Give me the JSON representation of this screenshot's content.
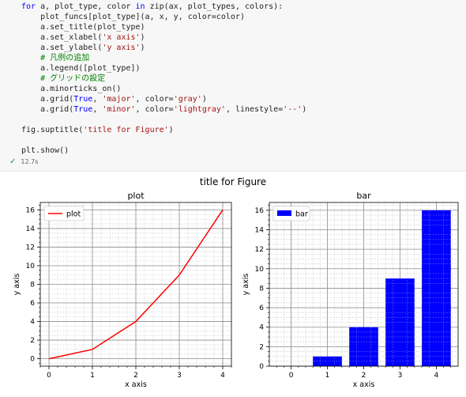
{
  "code_cell": {
    "lines": [
      [
        {
          "t": "for ",
          "c": "kw"
        },
        {
          "t": "a, plot_type, color ",
          "c": ""
        },
        {
          "t": "in ",
          "c": "kw"
        },
        {
          "t": "zip(ax, plot_types, colors):",
          "c": ""
        }
      ],
      [
        {
          "t": "    plot_funcs[plot_type](a, x, y, color=color)",
          "c": ""
        }
      ],
      [
        {
          "t": "    a.set_title(plot_type)",
          "c": ""
        }
      ],
      [
        {
          "t": "    a.set_xlabel(",
          "c": ""
        },
        {
          "t": "'x axis'",
          "c": "str"
        },
        {
          "t": ")",
          "c": ""
        }
      ],
      [
        {
          "t": "    a.set_ylabel(",
          "c": ""
        },
        {
          "t": "'y axis'",
          "c": "str"
        },
        {
          "t": ")",
          "c": ""
        }
      ],
      [
        {
          "t": "    # 凡例の追加",
          "c": "com"
        }
      ],
      [
        {
          "t": "    a.legend([plot_type])",
          "c": ""
        }
      ],
      [
        {
          "t": "    # グリッドの設定",
          "c": "com"
        }
      ],
      [
        {
          "t": "    a.minorticks_on()",
          "c": ""
        }
      ],
      [
        {
          "t": "    a.grid(",
          "c": ""
        },
        {
          "t": "True",
          "c": "kw"
        },
        {
          "t": ", ",
          "c": ""
        },
        {
          "t": "'major'",
          "c": "str"
        },
        {
          "t": ", color=",
          "c": ""
        },
        {
          "t": "'gray'",
          "c": "str"
        },
        {
          "t": ")",
          "c": ""
        }
      ],
      [
        {
          "t": "    a.grid(",
          "c": ""
        },
        {
          "t": "True",
          "c": "kw"
        },
        {
          "t": ", ",
          "c": ""
        },
        {
          "t": "'minor'",
          "c": "str"
        },
        {
          "t": ", color=",
          "c": ""
        },
        {
          "t": "'lightgray'",
          "c": "str"
        },
        {
          "t": ", linestyle=",
          "c": ""
        },
        {
          "t": "'--'",
          "c": "str"
        },
        {
          "t": ")",
          "c": ""
        }
      ],
      [
        {
          "t": "",
          "c": ""
        }
      ],
      [
        {
          "t": "fig.suptitle(",
          "c": ""
        },
        {
          "t": "'title for Figure'",
          "c": "str"
        },
        {
          "t": ")",
          "c": ""
        }
      ],
      [
        {
          "t": "",
          "c": ""
        }
      ],
      [
        {
          "t": "plt.show()",
          "c": ""
        }
      ]
    ],
    "exec_time": "12.7s"
  },
  "figure": {
    "suptitle": "title for Figure"
  },
  "chart_data": [
    {
      "type": "line",
      "title": "plot",
      "xlabel": "x axis",
      "ylabel": "y axis",
      "x": [
        0,
        1,
        2,
        3,
        4
      ],
      "series": [
        {
          "name": "plot",
          "values": [
            0,
            1,
            4,
            9,
            16
          ],
          "color": "#ff0000"
        }
      ],
      "xlim": [
        -0.2,
        4.2
      ],
      "ylim": [
        -0.8,
        16.8
      ],
      "xticks": [
        0,
        1,
        2,
        3,
        4
      ],
      "yticks": [
        0,
        2,
        4,
        6,
        8,
        10,
        12,
        14,
        16
      ],
      "grid": true,
      "legend": "top-left"
    },
    {
      "type": "bar",
      "title": "bar",
      "xlabel": "x axis",
      "ylabel": "y axis",
      "categories": [
        0,
        1,
        2,
        3,
        4
      ],
      "series": [
        {
          "name": "bar",
          "values": [
            0,
            1,
            4,
            9,
            16
          ],
          "color": "#0000ff"
        }
      ],
      "xlim": [
        -0.6,
        4.6
      ],
      "ylim": [
        0,
        16.8
      ],
      "xticks": [
        0,
        1,
        2,
        3,
        4
      ],
      "yticks": [
        0,
        2,
        4,
        6,
        8,
        10,
        12,
        14,
        16
      ],
      "grid": true,
      "legend": "top-left"
    }
  ]
}
